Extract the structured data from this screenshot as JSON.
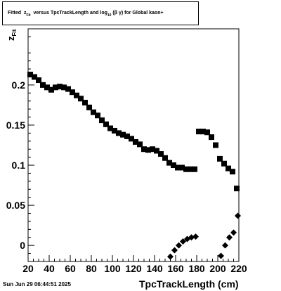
{
  "title": {
    "prefix": "Fitted",
    "z": "z",
    "z_sub": "Fit",
    "middle": "versus TpcTrackLength and log",
    "log_sub": "10",
    "paren_open": "(",
    "beta": "β",
    "gamma": "γ",
    "suffix": ") for Global kaon+"
  },
  "timestamp": "Sun Jun 29 06:44:51 2025",
  "chart_data": {
    "type": "scatter",
    "title": "Fitted z_Fit versus TpcTrackLength and log_10 (β γ) for Global kaon+",
    "xlabel": "TpcTrackLength (cm)",
    "ylabel": "z_Fit",
    "xlim": [
      20,
      220
    ],
    "ylim": [
      -0.02,
      0.27
    ],
    "xticks": [
      20,
      40,
      60,
      80,
      100,
      120,
      140,
      160,
      180,
      200,
      220
    ],
    "yticks": [
      0,
      0.05,
      0.1,
      0.15,
      0.2
    ],
    "ytick_labels": [
      "0",
      "0.05",
      "0.1",
      "0.15",
      "0.2"
    ],
    "grid": false,
    "series": [
      {
        "marker": "square",
        "color": "#000000",
        "points": [
          [
            22,
            0.213
          ],
          [
            26,
            0.21
          ],
          [
            30,
            0.206
          ],
          [
            34,
            0.2
          ],
          [
            38,
            0.197
          ],
          [
            42,
            0.194
          ],
          [
            46,
            0.197
          ],
          [
            50,
            0.198
          ],
          [
            54,
            0.197
          ],
          [
            58,
            0.195
          ],
          [
            62,
            0.191
          ],
          [
            66,
            0.187
          ],
          [
            70,
            0.183
          ],
          [
            74,
            0.178
          ],
          [
            78,
            0.172
          ],
          [
            82,
            0.166
          ],
          [
            86,
            0.162
          ],
          [
            90,
            0.156
          ],
          [
            94,
            0.151
          ],
          [
            98,
            0.146
          ],
          [
            102,
            0.143
          ],
          [
            106,
            0.14
          ],
          [
            110,
            0.138
          ],
          [
            114,
            0.136
          ],
          [
            118,
            0.133
          ],
          [
            122,
            0.129
          ],
          [
            126,
            0.126
          ],
          [
            130,
            0.12
          ],
          [
            134,
            0.119
          ],
          [
            138,
            0.12
          ],
          [
            142,
            0.118
          ],
          [
            146,
            0.114
          ],
          [
            150,
            0.109
          ],
          [
            154,
            0.103
          ],
          [
            158,
            0.1
          ],
          [
            162,
            0.097
          ],
          [
            166,
            0.097
          ],
          [
            170,
            0.095
          ],
          [
            174,
            0.095
          ],
          [
            178,
            0.095
          ],
          [
            182,
            0.142
          ],
          [
            186,
            0.142
          ],
          [
            190,
            0.141
          ],
          [
            194,
            0.135
          ],
          [
            198,
            0.125
          ],
          [
            202,
            0.108
          ],
          [
            206,
            0.102
          ],
          [
            210,
            0.096
          ],
          [
            214,
            0.092
          ],
          [
            218,
            0.071
          ]
        ]
      },
      {
        "marker": "diamond",
        "color": "#000000",
        "points": [
          [
            155,
            -0.014
          ],
          [
            159,
            -0.006
          ],
          [
            163,
            0.0
          ],
          [
            167,
            0.005
          ],
          [
            171,
            0.008
          ],
          [
            175,
            0.01
          ],
          [
            179,
            0.011
          ],
          [
            203,
            -0.013
          ],
          [
            207,
            0.0
          ],
          [
            211,
            0.01
          ],
          [
            215,
            0.016
          ],
          [
            219,
            0.037
          ]
        ]
      }
    ]
  }
}
